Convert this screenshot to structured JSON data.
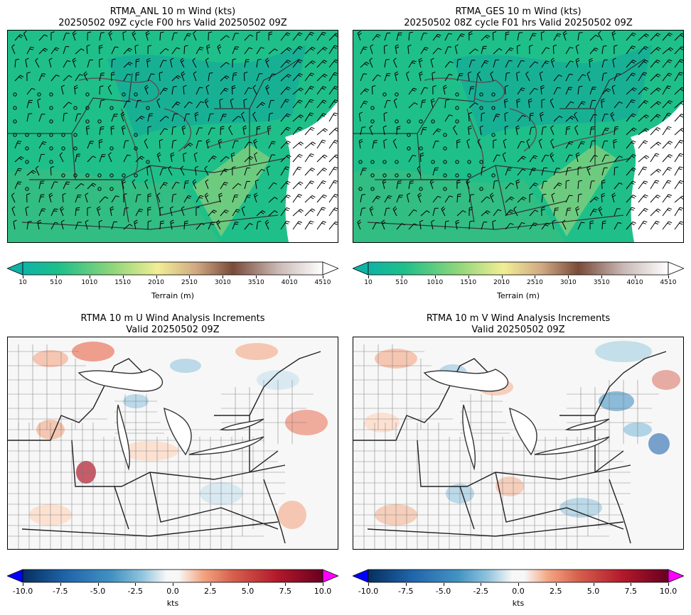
{
  "panels": [
    {
      "title_line1": "RTMA_ANL 10 m Wind (kts)",
      "title_line2": "20250502 09Z cycle F00 hrs Valid 20250502 09Z",
      "colorbar": {
        "label": "Terrain (m)",
        "ticks": [
          "10",
          "510",
          "1010",
          "1510",
          "2010",
          "2510",
          "3010",
          "3510",
          "4010",
          "4510"
        ]
      }
    },
    {
      "title_line1": "RTMA_GES 10 m Wind (kts)",
      "title_line2": "20250502 08Z cycle F01 hrs Valid 20250502 09Z",
      "colorbar": {
        "label": "Terrain (m)",
        "ticks": [
          "10",
          "510",
          "1010",
          "1510",
          "2010",
          "2510",
          "3010",
          "3510",
          "4010",
          "4510"
        ]
      }
    },
    {
      "title_line1": "RTMA 10 m U Wind Analysis Increments",
      "title_line2": "Valid 20250502 09Z",
      "colorbar": {
        "label": "kts",
        "ticks": [
          "-10.0",
          "-7.5",
          "-5.0",
          "-2.5",
          "0.0",
          "2.5",
          "5.0",
          "7.5",
          "10.0"
        ]
      }
    },
    {
      "title_line1": "RTMA 10 m V Wind Analysis Increments",
      "title_line2": "Valid 20250502 09Z",
      "colorbar": {
        "label": "kts",
        "ticks": [
          "-10.0",
          "-7.5",
          "-5.0",
          "-2.5",
          "0.0",
          "2.5",
          "5.0",
          "7.5",
          "10.0"
        ]
      }
    }
  ],
  "colors": {
    "terrain_low": "#1fbf8a",
    "terrain_mid": "#f2ee96",
    "terrain_high": "#7a4b3a",
    "terrain_top": "#ffffff",
    "increment_negative": "#2166ac",
    "increment_positive": "#b2182b",
    "over_max": "#ff00ff",
    "under_min": "#0000ff"
  },
  "icons": {
    "wind_barb": "wind-barb-icon",
    "calm": "calm-circle-icon"
  }
}
